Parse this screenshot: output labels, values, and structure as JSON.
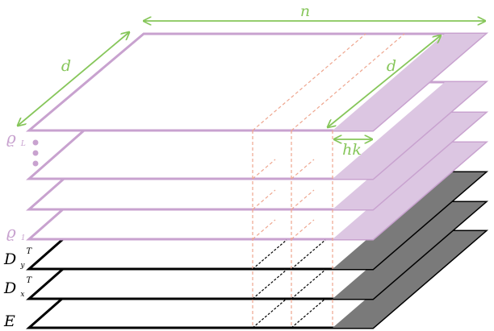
{
  "diagram": {
    "dimension_labels": {
      "n": "n",
      "d_left": "d",
      "d_right": "d",
      "hk": "hk"
    },
    "layer_labels": {
      "rho_top_main": "ϱ",
      "rho_top_sub": "L",
      "rho_bottom_main": "ϱ",
      "rho_bottom_sub": "1",
      "dy_main": "D",
      "dy_sub": "y",
      "dy_sup": "T",
      "dx_main": "D",
      "dx_sub": "x",
      "dx_sup": "T",
      "e_main": "E"
    },
    "colors": {
      "purple": "#c8a2cf",
      "purple_fill": "#dcc6e2",
      "green": "#86c65a",
      "salmon": "#eea58e",
      "black": "#000000",
      "gray_fill": "#7a7a7a"
    }
  }
}
